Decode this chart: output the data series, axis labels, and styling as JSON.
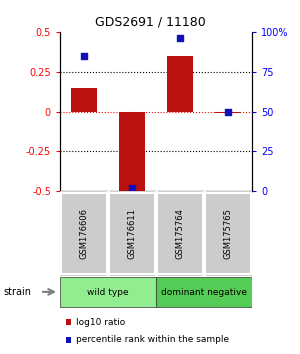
{
  "title": "GDS2691 / 11180",
  "samples": [
    "GSM176606",
    "GSM176611",
    "GSM175764",
    "GSM175765"
  ],
  "log10_ratio": [
    0.15,
    -0.5,
    0.35,
    -0.01
  ],
  "percentile_rank": [
    85,
    2,
    96,
    50
  ],
  "groups": [
    {
      "label": "wild type",
      "start": 0,
      "end": 2,
      "color": "#90ee90"
    },
    {
      "label": "dominant negative",
      "start": 2,
      "end": 4,
      "color": "#55cc55"
    }
  ],
  "group_label_prefix": "strain",
  "ylim_left": [
    -0.5,
    0.5
  ],
  "ylim_right": [
    0,
    100
  ],
  "yticks_left": [
    -0.5,
    -0.25,
    0,
    0.25,
    0.5
  ],
  "yticks_right": [
    0,
    25,
    50,
    75,
    100
  ],
  "ytick_labels_right": [
    "0",
    "25",
    "50",
    "75",
    "100%"
  ],
  "bar_color": "#bb1111",
  "dot_color": "#1111bb",
  "background_color": "#ffffff",
  "bar_width": 0.55,
  "sample_label_bg": "#cccccc",
  "legend_items": [
    {
      "color": "#bb1111",
      "label": "log10 ratio"
    },
    {
      "color": "#1111bb",
      "label": "percentile rank within the sample"
    }
  ]
}
